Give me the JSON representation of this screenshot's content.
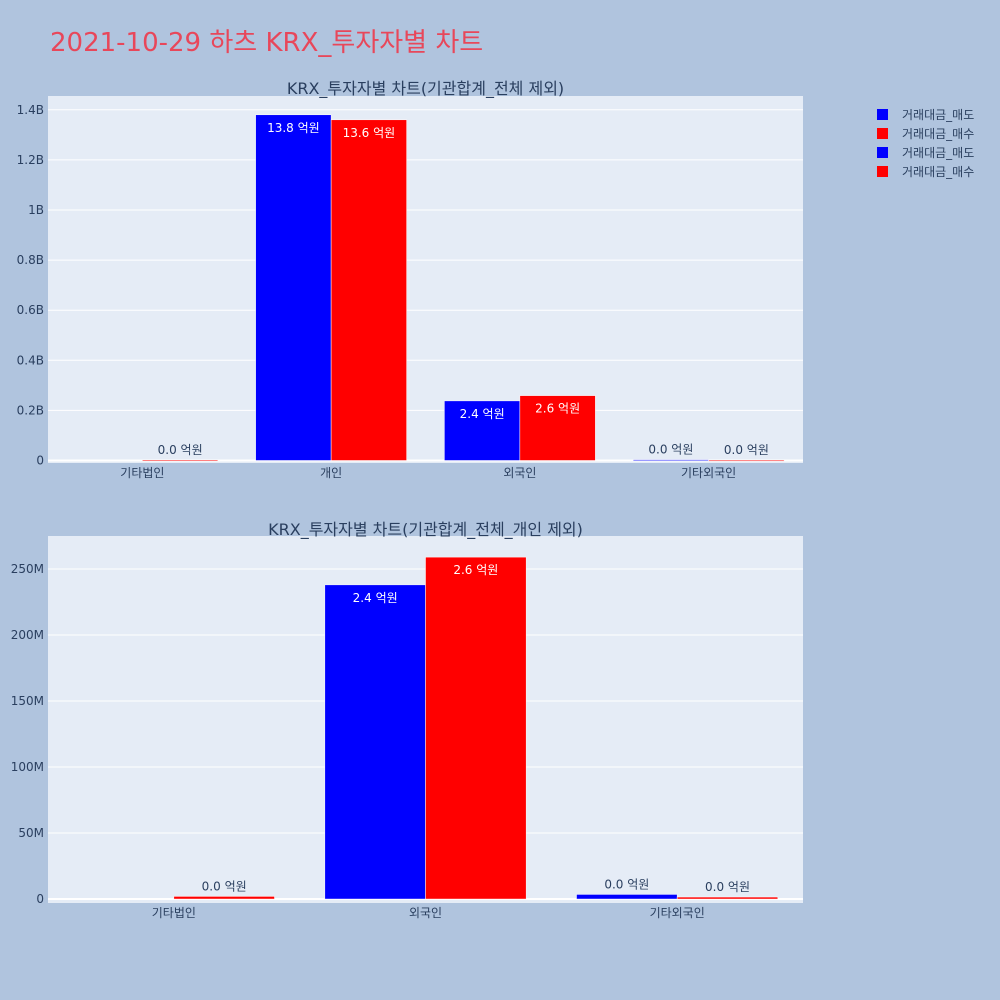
{
  "title": "2021-10-29 하츠 KRX_투자자별 차트",
  "colors": {
    "sell": "#0000ff",
    "buy": "#ff0000",
    "title": "#e8475a",
    "plot_bg": "#e5ecf6",
    "background": "#b0c4de"
  },
  "legend": [
    "거래대금_매도",
    "거래대금_매수",
    "거래대금_매도",
    "거래대금_매수"
  ],
  "chart_data": [
    {
      "type": "bar",
      "title": "KRX_투자자별 차트(기관합계_전체 제외)",
      "categories": [
        "기타법인",
        "개인",
        "외국인",
        "기타외국인"
      ],
      "series": [
        {
          "name": "거래대금_매도",
          "color": "#0000ff",
          "values": [
            0,
            1380000000,
            238000000,
            3500000
          ],
          "labels": [
            "",
            "13.8 억원",
            "2.4 억원",
            "0.0 억원"
          ]
        },
        {
          "name": "거래대금_매수",
          "color": "#ff0000",
          "values": [
            2000000,
            1360000000,
            259000000,
            1500000
          ],
          "labels": [
            "0.0 억원",
            "13.6 억원",
            "2.6 억원",
            "0.0 억원"
          ]
        }
      ],
      "yticks": [
        {
          "value": 0,
          "label": "0"
        },
        {
          "value": 200000000,
          "label": "0.2B"
        },
        {
          "value": 400000000,
          "label": "0.4B"
        },
        {
          "value": 600000000,
          "label": "0.6B"
        },
        {
          "value": 800000000,
          "label": "0.8B"
        },
        {
          "value": 1000000000,
          "label": "1B"
        },
        {
          "value": 1200000000,
          "label": "1.2B"
        },
        {
          "value": 1400000000,
          "label": "1.4B"
        }
      ],
      "ylim": [
        -10000000,
        1455000000
      ],
      "grid": true
    },
    {
      "type": "bar",
      "title": "KRX_투자자별 차트(기관합계_전체_개인 제외)",
      "categories": [
        "기타법인",
        "외국인",
        "기타외국인"
      ],
      "series": [
        {
          "name": "거래대금_매도",
          "color": "#0000ff",
          "values": [
            0,
            238000000,
            3500000
          ],
          "labels": [
            "",
            "2.4 억원",
            "0.0 억원"
          ]
        },
        {
          "name": "거래대금_매수",
          "color": "#ff0000",
          "values": [
            2000000,
            259000000,
            1500000
          ],
          "labels": [
            "0.0 억원",
            "2.6 억원",
            "0.0 억원"
          ]
        }
      ],
      "yticks": [
        {
          "value": 0,
          "label": "0"
        },
        {
          "value": 50000000,
          "label": "50M"
        },
        {
          "value": 100000000,
          "label": "100M"
        },
        {
          "value": 150000000,
          "label": "150M"
        },
        {
          "value": 200000000,
          "label": "200M"
        },
        {
          "value": 250000000,
          "label": "250M"
        }
      ],
      "ylim": [
        -3000000,
        275000000
      ],
      "grid": true
    }
  ]
}
